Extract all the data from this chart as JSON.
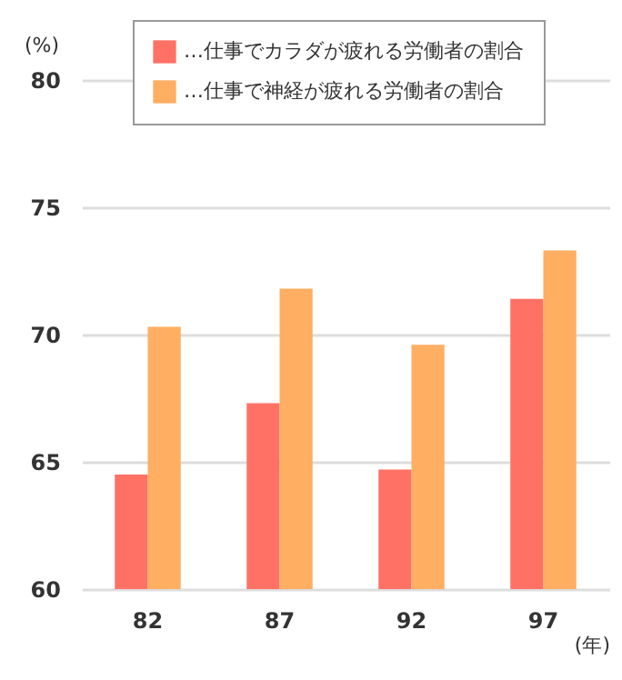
{
  "chart_data": {
    "type": "bar",
    "ylabel": "(%)",
    "xlabel": "(年)",
    "categories": [
      "82",
      "87",
      "92",
      "97"
    ],
    "series": [
      {
        "name": "…仕事でカラダが疲れる労働者の割合",
        "color": "#ff7165",
        "values": [
          64.5,
          67.3,
          64.7,
          71.4
        ]
      },
      {
        "name": "…仕事で神経が疲れる労働者の割合",
        "color": "#ffae62",
        "values": [
          70.3,
          71.8,
          69.6,
          73.3
        ]
      }
    ],
    "ylim": [
      60,
      80
    ],
    "yticks": [
      60,
      65,
      70,
      75,
      80
    ],
    "grid": "y",
    "legend": "top right"
  }
}
